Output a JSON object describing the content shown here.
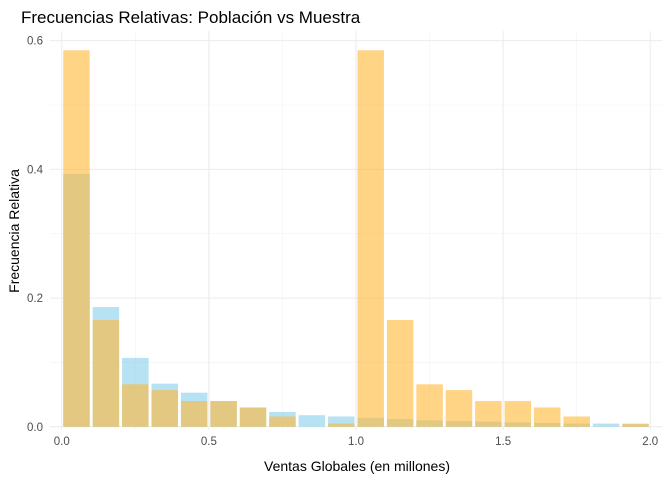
{
  "chart_data": {
    "type": "bar",
    "title": "Frecuencias Relativas: Población vs Muestra",
    "xlabel": "Ventas Globales (en millones)",
    "ylabel": "Frecuencia Relativa",
    "xlim": [
      -0.04,
      2.04
    ],
    "ylim": [
      -0.005,
      0.615
    ],
    "x_ticks": [
      {
        "value": 0.0,
        "label": "0.0"
      },
      {
        "value": 0.5,
        "label": "0.5"
      },
      {
        "value": 1.0,
        "label": "1.0"
      },
      {
        "value": 1.5,
        "label": "1.5"
      },
      {
        "value": 2.0,
        "label": "2.0"
      }
    ],
    "y_ticks": [
      {
        "value": 0.0,
        "label": "0.0"
      },
      {
        "value": 0.2,
        "label": "0.2"
      },
      {
        "value": 0.4,
        "label": "0.4"
      },
      {
        "value": 0.6,
        "label": "0.6"
      }
    ],
    "grid": true,
    "bin_width": 0.1,
    "series": [
      {
        "color": "#87CEEB",
        "opacity": 0.6,
        "bins": [
          {
            "x": 0.05,
            "y": 0.393
          },
          {
            "x": 0.15,
            "y": 0.186
          },
          {
            "x": 0.25,
            "y": 0.107
          },
          {
            "x": 0.35,
            "y": 0.067
          },
          {
            "x": 0.45,
            "y": 0.053
          },
          {
            "x": 0.55,
            "y": 0.04
          },
          {
            "x": 0.65,
            "y": 0.03
          },
          {
            "x": 0.75,
            "y": 0.023
          },
          {
            "x": 0.85,
            "y": 0.018
          },
          {
            "x": 0.95,
            "y": 0.016
          },
          {
            "x": 1.05,
            "y": 0.014
          },
          {
            "x": 1.15,
            "y": 0.012
          },
          {
            "x": 1.25,
            "y": 0.01
          },
          {
            "x": 1.35,
            "y": 0.009
          },
          {
            "x": 1.45,
            "y": 0.008
          },
          {
            "x": 1.55,
            "y": 0.007
          },
          {
            "x": 1.65,
            "y": 0.006
          },
          {
            "x": 1.75,
            "y": 0.005
          },
          {
            "x": 1.85,
            "y": 0.005
          },
          {
            "x": 1.95,
            "y": 0.004
          }
        ]
      },
      {
        "color": "#FFB833",
        "opacity": 0.6,
        "bins": [
          {
            "x": 0.05,
            "y": 0.585
          },
          {
            "x": 0.15,
            "y": 0.166
          },
          {
            "x": 0.25,
            "y": 0.066
          },
          {
            "x": 0.35,
            "y": 0.057
          },
          {
            "x": 0.45,
            "y": 0.04
          },
          {
            "x": 0.55,
            "y": 0.04
          },
          {
            "x": 0.65,
            "y": 0.03
          },
          {
            "x": 0.75,
            "y": 0.016
          },
          {
            "x": 0.85,
            "y": 0.0
          },
          {
            "x": 0.95,
            "y": 0.005
          },
          {
            "x": 1.05,
            "y": 0.585
          },
          {
            "x": 1.15,
            "y": 0.166
          },
          {
            "x": 1.25,
            "y": 0.066
          },
          {
            "x": 1.35,
            "y": 0.057
          },
          {
            "x": 1.45,
            "y": 0.04
          },
          {
            "x": 1.55,
            "y": 0.04
          },
          {
            "x": 1.65,
            "y": 0.03
          },
          {
            "x": 1.75,
            "y": 0.016
          },
          {
            "x": 1.85,
            "y": 0.0
          },
          {
            "x": 1.95,
            "y": 0.005
          }
        ]
      }
    ]
  }
}
